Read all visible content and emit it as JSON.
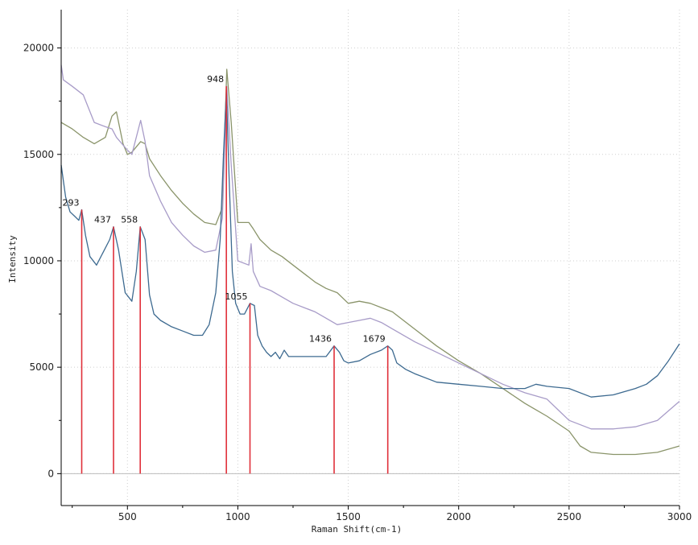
{
  "chart_data": {
    "type": "line",
    "title": "",
    "xlabel": "Raman Shift(cm-1)",
    "ylabel": "Intensity",
    "xlim": [
      200,
      3000
    ],
    "ylim": [
      -1500,
      21800
    ],
    "grid": true,
    "x_ticks": [
      500,
      1000,
      1500,
      2000,
      2500,
      3000
    ],
    "y_ticks": [
      0,
      5000,
      10000,
      15000,
      20000
    ],
    "series": [
      {
        "color": "#8a946a",
        "x": [
          200,
          250,
          300,
          350,
          400,
          430,
          450,
          480,
          500,
          520,
          560,
          580,
          600,
          650,
          700,
          750,
          800,
          850,
          900,
          930,
          950,
          970,
          1000,
          1050,
          1070,
          1100,
          1150,
          1200,
          1250,
          1300,
          1350,
          1400,
          1450,
          1500,
          1550,
          1600,
          1650,
          1700,
          1800,
          1900,
          2000,
          2100,
          2200,
          2300,
          2400,
          2500,
          2550,
          2600,
          2700,
          2800,
          2900,
          3000
        ],
        "y": [
          16500,
          16200,
          15800,
          15500,
          15800,
          16800,
          17000,
          15500,
          15000,
          15100,
          15600,
          15500,
          14800,
          14000,
          13300,
          12700,
          12200,
          11800,
          11700,
          12500,
          19000,
          16500,
          11800,
          11800,
          11500,
          11000,
          10500,
          10200,
          9800,
          9400,
          9000,
          8700,
          8500,
          8000,
          8100,
          8000,
          7800,
          7600,
          6800,
          6000,
          5300,
          4700,
          4000,
          3300,
          2700,
          2000,
          1300,
          1000,
          900,
          900,
          1000,
          1300
        ]
      },
      {
        "color": "#a89cc8",
        "x": [
          200,
          210,
          250,
          300,
          350,
          400,
          430,
          450,
          500,
          520,
          560,
          580,
          600,
          650,
          700,
          750,
          800,
          850,
          900,
          930,
          950,
          970,
          1000,
          1050,
          1060,
          1070,
          1100,
          1150,
          1200,
          1250,
          1300,
          1350,
          1400,
          1450,
          1500,
          1550,
          1600,
          1650,
          1700,
          1800,
          1900,
          2000,
          2100,
          2200,
          2300,
          2400,
          2450,
          2500,
          2600,
          2700,
          2800,
          2900,
          3000
        ],
        "y": [
          19200,
          18500,
          18200,
          17800,
          16500,
          16300,
          16200,
          15800,
          15200,
          15000,
          16600,
          15600,
          14000,
          12800,
          11800,
          11200,
          10700,
          10400,
          10500,
          12000,
          18200,
          14500,
          10000,
          9800,
          10800,
          9500,
          8800,
          8600,
          8300,
          8000,
          7800,
          7600,
          7300,
          7000,
          7100,
          7200,
          7300,
          7100,
          6800,
          6200,
          5700,
          5200,
          4700,
          4200,
          3800,
          3500,
          3000,
          2500,
          2100,
          2100,
          2200,
          2500,
          3400
        ]
      },
      {
        "color": "#3d6a90",
        "x": [
          200,
          220,
          240,
          260,
          280,
          293,
          310,
          330,
          360,
          390,
          420,
          437,
          460,
          490,
          520,
          540,
          558,
          580,
          600,
          620,
          650,
          700,
          750,
          800,
          840,
          870,
          900,
          920,
          935,
          948,
          960,
          975,
          990,
          1010,
          1030,
          1055,
          1075,
          1090,
          1110,
          1130,
          1150,
          1170,
          1190,
          1210,
          1230,
          1260,
          1300,
          1350,
          1400,
          1436,
          1460,
          1480,
          1500,
          1550,
          1600,
          1650,
          1679,
          1700,
          1720,
          1760,
          1800,
          1900,
          2000,
          2100,
          2200,
          2300,
          2350,
          2400,
          2500,
          2600,
          2700,
          2800,
          2850,
          2900,
          2950,
          3000
        ],
        "y": [
          14500,
          13000,
          12300,
          12100,
          11900,
          12400,
          11200,
          10200,
          9800,
          10400,
          11000,
          11600,
          10500,
          8500,
          8100,
          9500,
          11600,
          11000,
          8400,
          7500,
          7200,
          6900,
          6700,
          6500,
          6500,
          7000,
          8500,
          11000,
          15000,
          18000,
          14000,
          9500,
          8000,
          7500,
          7500,
          8000,
          7900,
          6500,
          6000,
          5700,
          5500,
          5700,
          5400,
          5800,
          5500,
          5500,
          5500,
          5500,
          5500,
          6000,
          5700,
          5300,
          5200,
          5300,
          5600,
          5800,
          6000,
          5800,
          5200,
          4900,
          4700,
          4300,
          4200,
          4100,
          4000,
          4000,
          4200,
          4100,
          4000,
          3600,
          3700,
          4000,
          4200,
          4600,
          5300,
          6100
        ]
      }
    ],
    "peak_markers": {
      "color": "#e0303a",
      "x": [
        293,
        437,
        558,
        948,
        1055,
        1436,
        1679
      ],
      "y": [
        12400,
        11600,
        11600,
        18200,
        8000,
        6000,
        6000
      ],
      "labels": [
        "293",
        "437",
        "558",
        "948",
        "1055",
        "1436",
        "1679"
      ]
    }
  }
}
